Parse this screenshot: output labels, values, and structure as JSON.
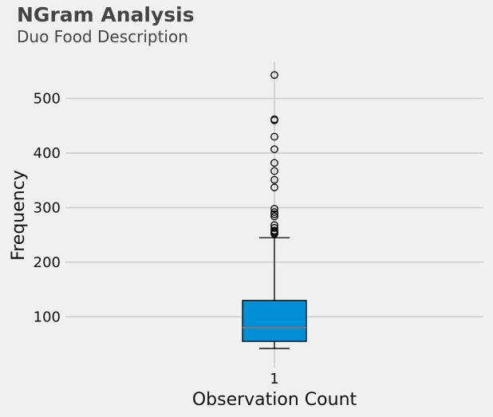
{
  "title": "NGram Analysis",
  "subtitle": "Duo Food Description",
  "chart_data": {
    "type": "box",
    "title": "NGram Analysis",
    "subtitle": "Duo Food Description",
    "xlabel": "Observation Count",
    "ylabel": "Frequency",
    "categories": [
      "1"
    ],
    "ylim": [
      7,
      568
    ],
    "yticks": [
      100,
      200,
      300,
      400,
      500
    ],
    "grid": true,
    "series": [
      {
        "whisker_low": 42,
        "q1": 55,
        "median": 80,
        "q3": 130,
        "whisker_high": 245,
        "outliers": [
          252,
          254,
          256,
          258,
          263,
          268,
          284,
          288,
          292,
          298,
          337,
          351,
          367,
          382,
          407,
          430,
          460,
          462,
          543
        ]
      }
    ],
    "colors": {
      "box_fill": "#008fd5",
      "median_line": "#777777",
      "background": "#f0f0f0",
      "grid": "#cbcbcb"
    }
  }
}
